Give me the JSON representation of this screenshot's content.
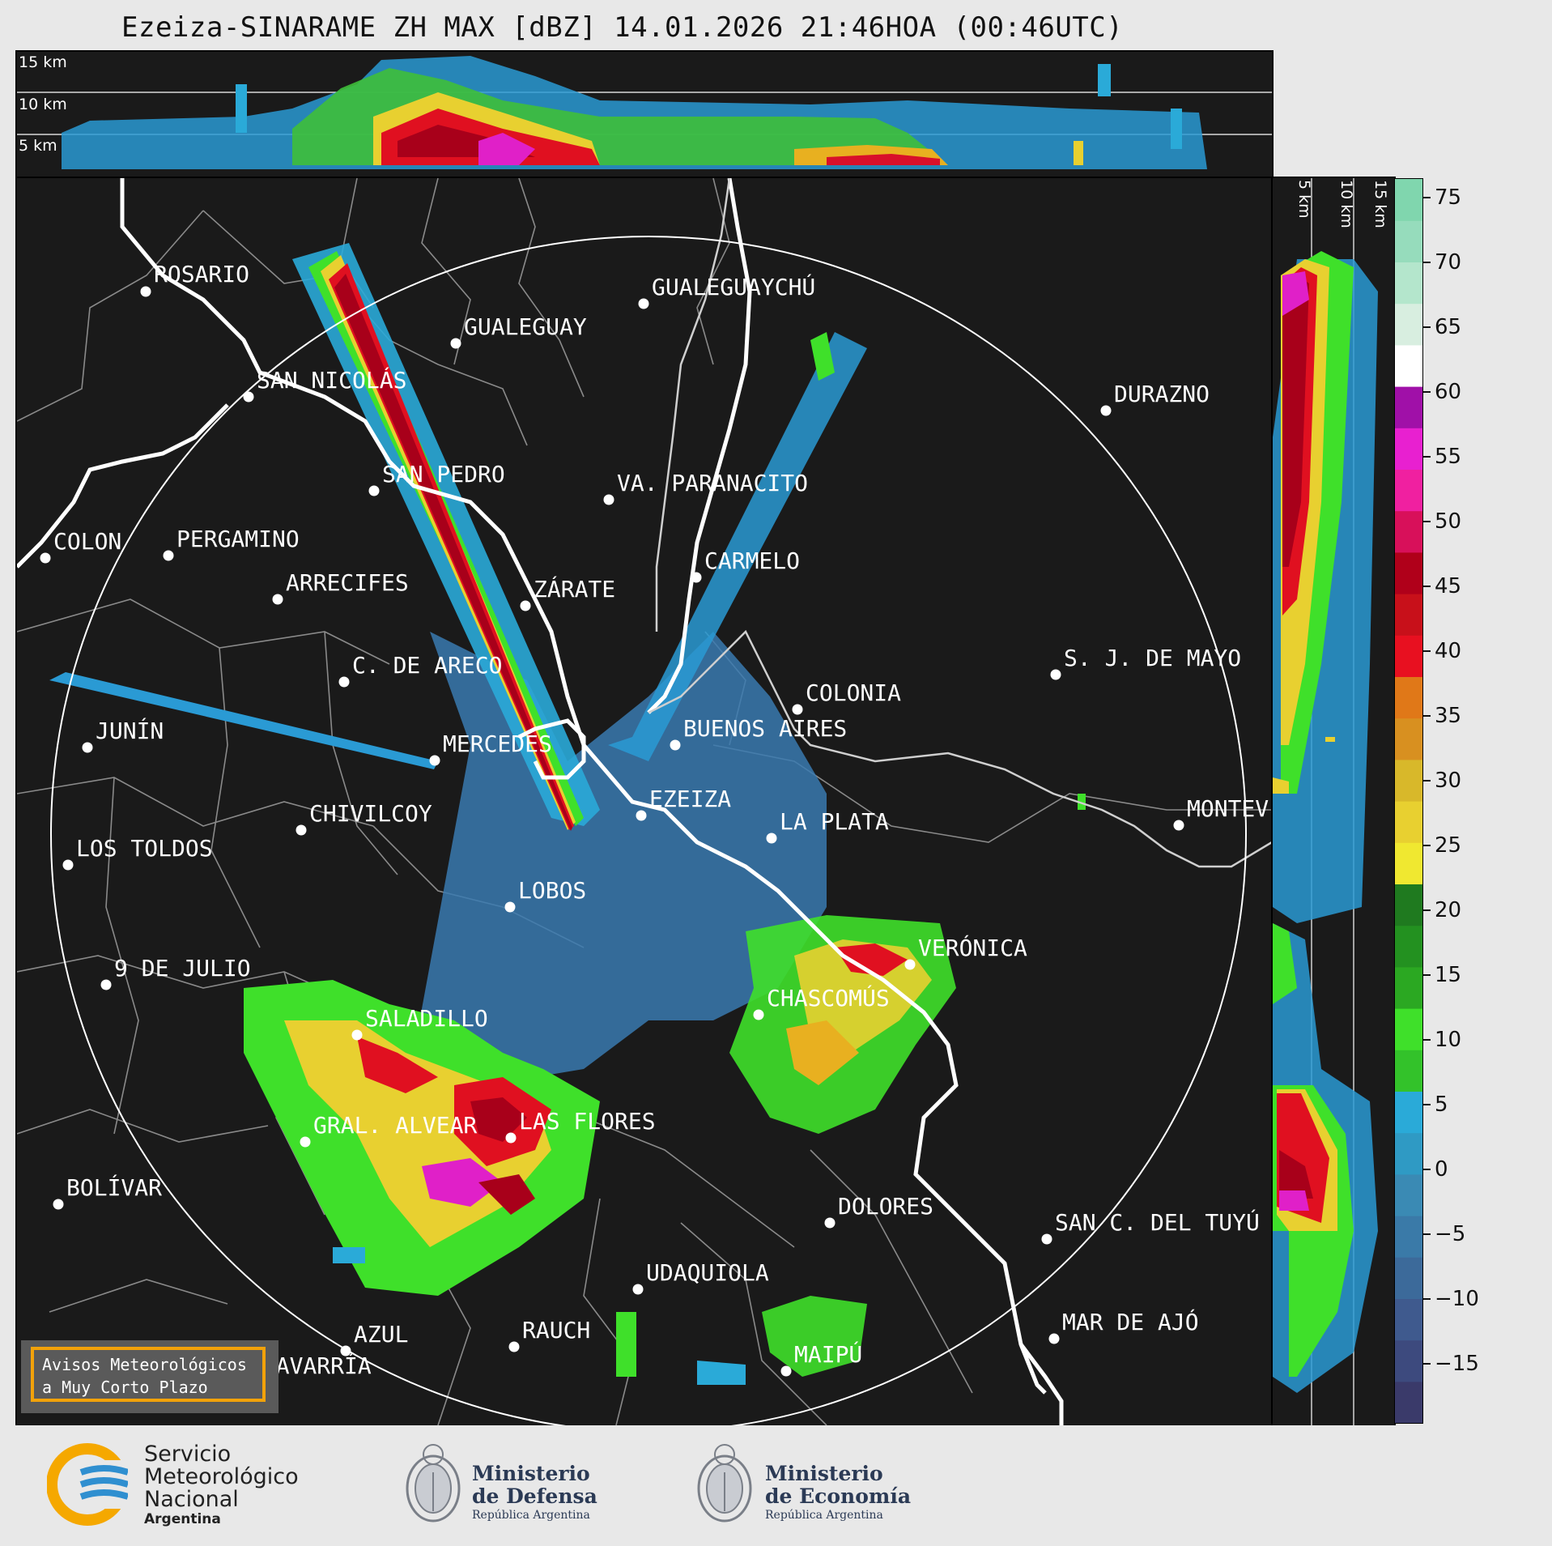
{
  "title": "Ezeiza-SINARAME ZH MAX [dBZ] 14.01.2026 21:46HOA (00:46UTC)",
  "top_panel": {
    "height_labels": [
      "15 km",
      "10 km",
      "5 km"
    ]
  },
  "side_panel": {
    "height_labels": [
      "5 km",
      "10 km",
      "15 km"
    ]
  },
  "colorbar": {
    "unit": "dBZ",
    "ticks": [
      "75",
      "70",
      "65",
      "60",
      "55",
      "50",
      "45",
      "40",
      "35",
      "30",
      "25",
      "20",
      "15",
      "10",
      "5",
      "0",
      "−5",
      "−10",
      "−15"
    ],
    "colors": [
      "#3a3a6a",
      "#3d4a7e",
      "#3f5a8e",
      "#3c6a9a",
      "#3a7aa8",
      "#3a8ab4",
      "#2f9ac4",
      "#2aaad8",
      "#33c22a",
      "#3fe02a",
      "#2ba822",
      "#239120",
      "#1f7a1f",
      "#f0e830",
      "#e8d030",
      "#d8b82a",
      "#d89020",
      "#e07818",
      "#e81020",
      "#c8101a",
      "#b0001a",
      "#d8105a",
      "#f020a0",
      "#e820d0",
      "#a010a8",
      "#ffffff",
      "#d8eee0",
      "#b4e6cc",
      "#96dcbc",
      "#80d6ae"
    ],
    "accent_colors": {
      "weak": "#3a3a6a",
      "moderate": "#33c22a",
      "strong": "#e81020",
      "extreme": "#80d6ae"
    }
  },
  "cities": [
    {
      "name": "ROSARIO"
    },
    {
      "name": "GUALEGUAYCHÚ"
    },
    {
      "name": "GUALEGUAY"
    },
    {
      "name": "SAN NICOLÁS"
    },
    {
      "name": "DURAZNO"
    },
    {
      "name": "SAN PEDRO"
    },
    {
      "name": "VA. PARANACITO"
    },
    {
      "name": "COLON"
    },
    {
      "name": "PERGAMINO"
    },
    {
      "name": "CARMELO"
    },
    {
      "name": "ARRECIFES"
    },
    {
      "name": "ZÁRATE"
    },
    {
      "name": "S. J. DE MAYO"
    },
    {
      "name": "C. DE ARECO"
    },
    {
      "name": "COLONIA"
    },
    {
      "name": "JUNÍN"
    },
    {
      "name": "BUENOS AIRES"
    },
    {
      "name": "MERCEDES"
    },
    {
      "name": "EZEIZA"
    },
    {
      "name": "MONTEV"
    },
    {
      "name": "CHIVILCOY"
    },
    {
      "name": "LA PLATA"
    },
    {
      "name": "LOS TOLDOS"
    },
    {
      "name": "LOBOS"
    },
    {
      "name": "VERÓNICA"
    },
    {
      "name": "9 DE JULIO"
    },
    {
      "name": "CHASCOMÚS"
    },
    {
      "name": "SALADILLO"
    },
    {
      "name": "GRAL. ALVEAR"
    },
    {
      "name": "LAS FLORES"
    },
    {
      "name": "BOLÍVAR"
    },
    {
      "name": "DOLORES"
    },
    {
      "name": "SAN C. DEL TUYÚ"
    },
    {
      "name": "UDAQUIOLA"
    },
    {
      "name": "MAR DE AJÓ"
    },
    {
      "name": "RAUCH"
    },
    {
      "name": "AZUL"
    },
    {
      "name": "MAIPÚ"
    },
    {
      "name": "OLAVARRÍA"
    }
  ],
  "warning_box": {
    "line1": "Avisos Meteorológicos",
    "line2": "a Muy Corto Plazo"
  },
  "logos": {
    "smn": {
      "line1": "Servicio",
      "line2": "Meteorológico",
      "line3": "Nacional",
      "line4": "Argentina"
    },
    "defensa": {
      "line1": "Ministerio",
      "line2": "de Defensa",
      "line3": "República Argentina"
    },
    "economia": {
      "line1": "Ministerio",
      "line2": "de Economía",
      "line3": "República Argentina"
    }
  }
}
